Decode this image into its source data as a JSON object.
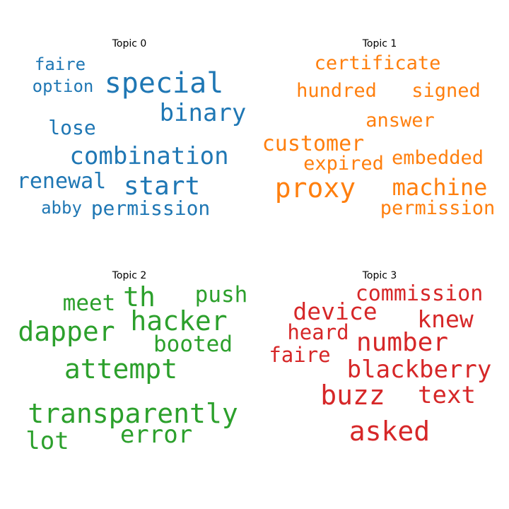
{
  "chart_data": {
    "type": "wordcloud",
    "panels": [
      {
        "title": "Topic 0",
        "color": "#1f77b4",
        "words": [
          "special",
          "binary",
          "combination",
          "start",
          "renewal",
          "lose",
          "option",
          "faire",
          "permission",
          "abby"
        ]
      },
      {
        "title": "Topic 1",
        "color": "#ff7f0e",
        "words": [
          "proxy",
          "machine",
          "customer",
          "certificate",
          "signed",
          "hundred",
          "permission",
          "embedded",
          "answer",
          "expired"
        ]
      },
      {
        "title": "Topic 2",
        "color": "#2ca02c",
        "words": [
          "transparently",
          "attempt",
          "hacker",
          "dapper",
          "error",
          "lot",
          "th",
          "push",
          "booted",
          "meet"
        ]
      },
      {
        "title": "Topic 3",
        "color": "#d62728",
        "words": [
          "blackberry",
          "number",
          "asked",
          "buzz",
          "text",
          "commission",
          "device",
          "knew",
          "heard",
          "faire"
        ]
      }
    ]
  }
}
